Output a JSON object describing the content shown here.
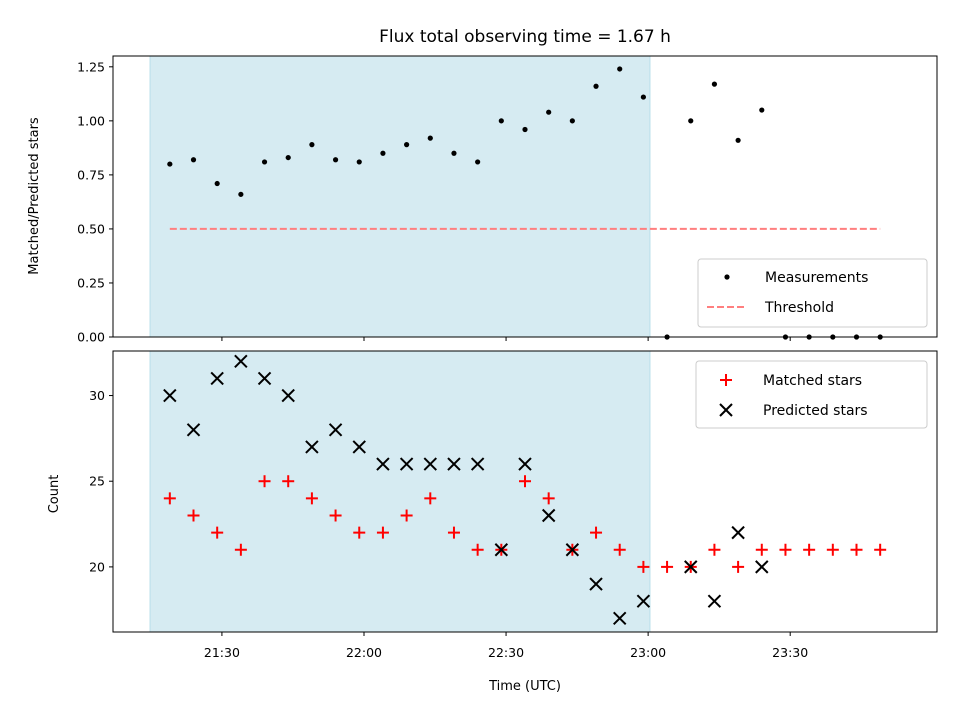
{
  "title": "Flux total observing time = 1.67 h",
  "colors": {
    "shade": "#add8e6",
    "measurement": "#000000",
    "threshold": "#ff7f7f",
    "matched": "#ff0000",
    "predicted": "#000000"
  },
  "chart_data": [
    {
      "type": "scatter",
      "ylabel": "Matched/Predicted stars",
      "xlabel": "",
      "ylim": [
        0,
        1.3
      ],
      "y_ticks": [
        "0.00",
        "0.25",
        "0.50",
        "0.75",
        "1.00",
        "1.25"
      ],
      "y_tick_values": [
        0,
        0.25,
        0.5,
        0.75,
        1.0,
        1.25
      ],
      "x_tick_values": [
        "21:30",
        "22:00",
        "22:30",
        "23:00",
        "23:30"
      ],
      "shaded_span": [
        "21:19",
        "22:59"
      ],
      "threshold": {
        "name": "Threshold",
        "value": 0.5,
        "x_range": [
          "21:19",
          "23:49"
        ]
      },
      "series": [
        {
          "name": "Measurements",
          "x": [
            "21:19",
            "21:24",
            "21:29",
            "21:34",
            "21:39",
            "21:44",
            "21:49",
            "21:54",
            "21:59",
            "22:04",
            "22:09",
            "22:14",
            "22:19",
            "22:24",
            "22:29",
            "22:34",
            "22:39",
            "22:44",
            "22:49",
            "22:54",
            "22:59",
            "23:04",
            "23:09",
            "23:14",
            "23:19",
            "23:24",
            "23:29",
            "23:34",
            "23:39",
            "23:44",
            "23:49"
          ],
          "values": [
            0.8,
            0.82,
            0.71,
            0.66,
            0.81,
            0.83,
            0.89,
            0.82,
            0.81,
            0.85,
            0.89,
            0.92,
            0.85,
            0.81,
            1.0,
            0.96,
            1.04,
            1.0,
            1.16,
            1.24,
            1.11,
            0.0,
            1.0,
            1.17,
            0.91,
            1.05,
            0.0,
            0.0,
            0.0,
            0.0,
            0.0
          ]
        }
      ]
    },
    {
      "type": "scatter",
      "ylabel": "Count",
      "xlabel": "Time (UTC)",
      "ylim": [
        16.2,
        32.6
      ],
      "y_ticks": [
        "20",
        "25",
        "30"
      ],
      "y_tick_values": [
        20,
        25,
        30
      ],
      "x_ticks": [
        "21:30",
        "22:00",
        "22:30",
        "23:00",
        "23:30"
      ],
      "x_tick_values": [
        "21:30",
        "22:00",
        "22:30",
        "23:00",
        "23:30"
      ],
      "shaded_span": [
        "21:19",
        "22:59"
      ],
      "series": [
        {
          "name": "Matched stars",
          "x": [
            "21:19",
            "21:24",
            "21:29",
            "21:34",
            "21:39",
            "21:44",
            "21:49",
            "21:54",
            "21:59",
            "22:04",
            "22:09",
            "22:14",
            "22:19",
            "22:24",
            "22:29",
            "22:34",
            "22:39",
            "22:44",
            "22:49",
            "22:54",
            "22:59",
            "23:04",
            "23:09",
            "23:14",
            "23:19",
            "23:24",
            "23:29",
            "23:34",
            "23:39",
            "23:44",
            "23:49"
          ],
          "values": [
            24,
            23,
            22,
            21,
            25,
            25,
            24,
            23,
            22,
            22,
            23,
            24,
            22,
            21,
            21,
            25,
            24,
            21,
            22,
            21,
            20,
            20,
            20,
            21,
            20,
            21,
            21,
            21,
            21,
            21,
            21
          ]
        },
        {
          "name": "Predicted stars",
          "x": [
            "21:19",
            "21:24",
            "21:29",
            "21:34",
            "21:39",
            "21:44",
            "21:49",
            "21:54",
            "21:59",
            "22:04",
            "22:09",
            "22:14",
            "22:19",
            "22:24",
            "22:29",
            "22:34",
            "22:39",
            "22:44",
            "22:49",
            "22:54",
            "22:59",
            "23:09",
            "23:14",
            "23:19",
            "23:24"
          ],
          "values": [
            30,
            28,
            31,
            32,
            31,
            30,
            27,
            28,
            27,
            26,
            26,
            26,
            26,
            26,
            21,
            26,
            23,
            21,
            19,
            17,
            18,
            20,
            18,
            22,
            20
          ]
        }
      ]
    }
  ]
}
